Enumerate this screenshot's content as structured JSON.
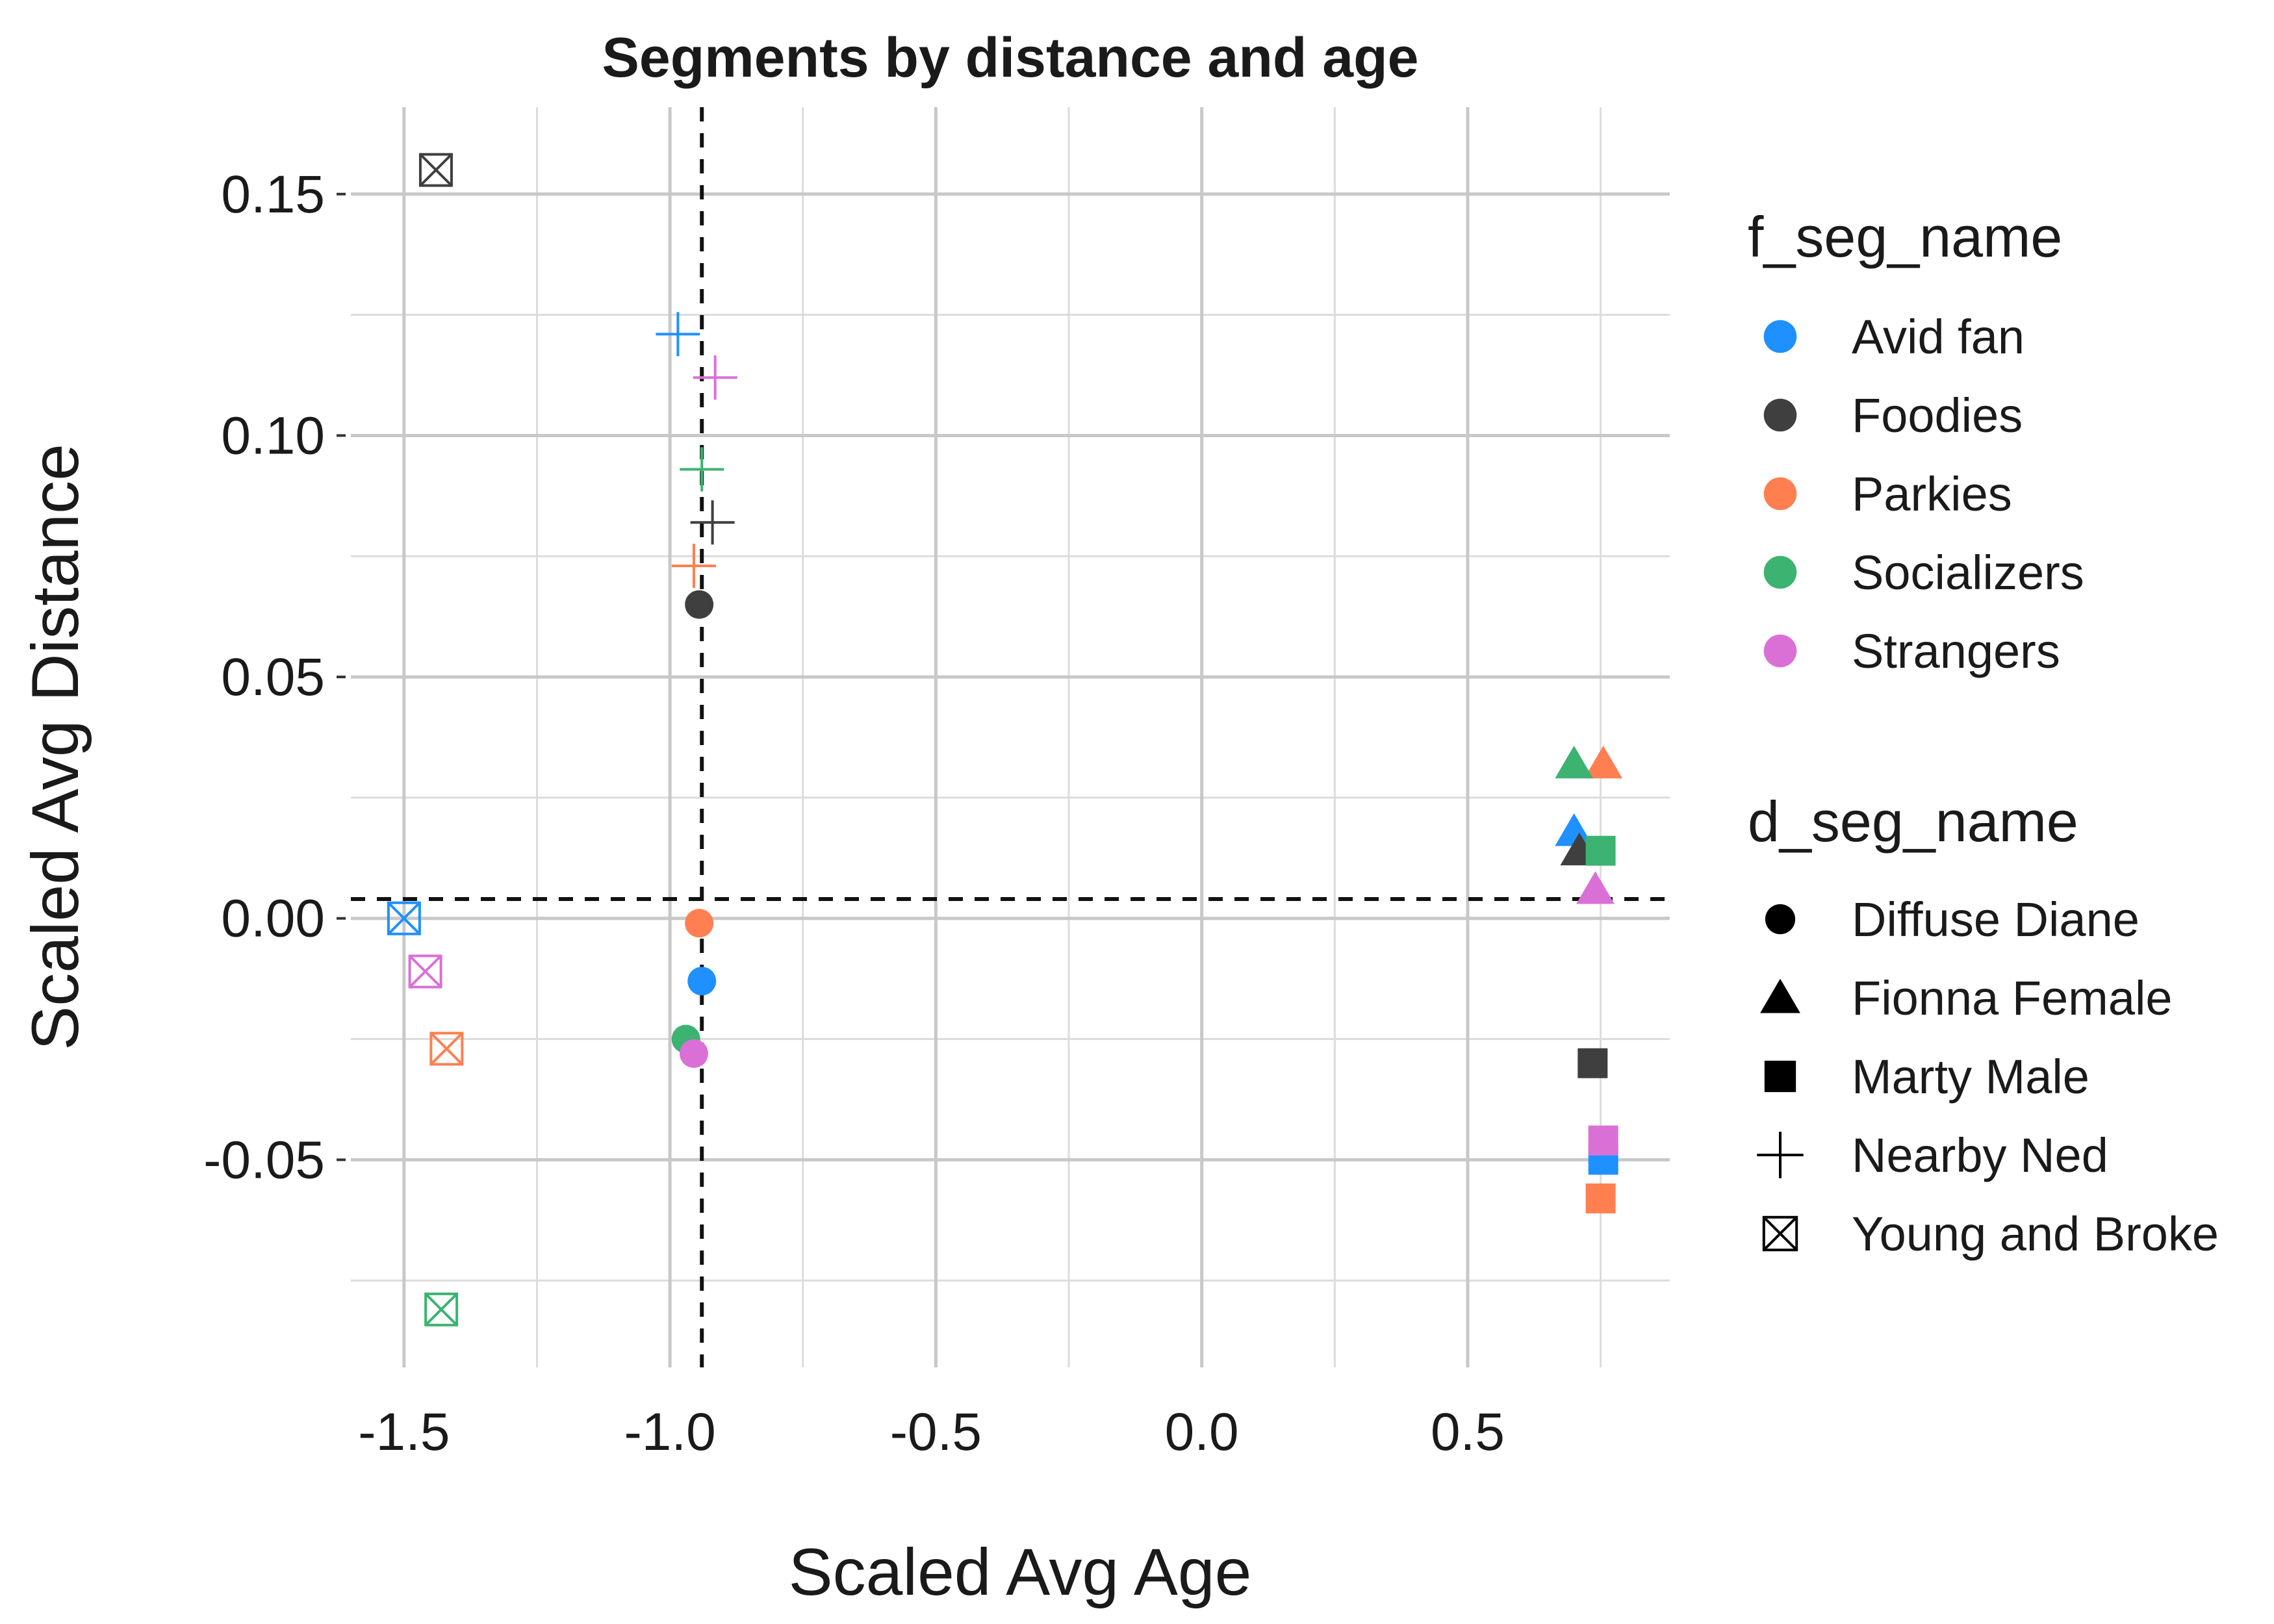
{
  "chart_data": {
    "type": "scatter",
    "title": "Segments by distance and age",
    "xlabel": "Scaled Avg Age",
    "ylabel": "Scaled Avg Distance",
    "xlim": [
      -1.6,
      0.88
    ],
    "ylim": [
      -0.093,
      0.168
    ],
    "x_ticks": [
      -1.5,
      -1.0,
      -0.5,
      0.0,
      0.5
    ],
    "x_tick_labels": [
      "-1.5",
      "-1.0",
      "-0.5",
      "0.0",
      "0.5"
    ],
    "y_ticks": [
      -0.05,
      0.0,
      0.05,
      0.1,
      0.15
    ],
    "y_tick_labels": [
      "-0.05",
      "0.00",
      "0.05",
      "0.10",
      "0.15"
    ],
    "x_minor_ticks": [
      -1.25,
      -0.75,
      -0.25,
      0.25,
      0.75
    ],
    "y_minor_ticks": [
      -0.075,
      -0.025,
      0.025,
      0.075,
      0.125
    ],
    "grid": true,
    "reference_lines": {
      "vline_x": -0.94,
      "hline_y": 0.004
    },
    "color_legend": {
      "title": "f_seg_name",
      "items": [
        {
          "name": "Avid fan",
          "color": "#1E90FF"
        },
        {
          "name": "Foodies",
          "color": "#3F3F3F"
        },
        {
          "name": "Parkies",
          "color": "#FF7F50"
        },
        {
          "name": "Socializers",
          "color": "#3CB371"
        },
        {
          "name": "Strangers",
          "color": "#DA70D6"
        }
      ]
    },
    "shape_legend": {
      "title": "d_seg_name",
      "items": [
        {
          "name": "Diffuse Diane",
          "shape": "circle"
        },
        {
          "name": "Fionna Female",
          "shape": "triangle"
        },
        {
          "name": "Marty Male",
          "shape": "square"
        },
        {
          "name": "Nearby Ned",
          "shape": "plus"
        },
        {
          "name": "Young and Broke",
          "shape": "boxx"
        }
      ]
    },
    "legend_position": "right",
    "points": [
      {
        "f": "Avid fan",
        "d": "Diffuse Diane",
        "x": -0.94,
        "y": -0.013
      },
      {
        "f": "Foodies",
        "d": "Diffuse Diane",
        "x": -0.945,
        "y": 0.065
      },
      {
        "f": "Parkies",
        "d": "Diffuse Diane",
        "x": -0.945,
        "y": -0.001
      },
      {
        "f": "Socializers",
        "d": "Diffuse Diane",
        "x": -0.97,
        "y": -0.025
      },
      {
        "f": "Strangers",
        "d": "Diffuse Diane",
        "x": -0.955,
        "y": -0.028
      },
      {
        "f": "Avid fan",
        "d": "Fionna Female",
        "x": 0.7,
        "y": 0.018
      },
      {
        "f": "Foodies",
        "d": "Fionna Female",
        "x": 0.71,
        "y": 0.014
      },
      {
        "f": "Parkies",
        "d": "Fionna Female",
        "x": 0.755,
        "y": 0.032
      },
      {
        "f": "Socializers",
        "d": "Fionna Female",
        "x": 0.7,
        "y": 0.032
      },
      {
        "f": "Strangers",
        "d": "Fionna Female",
        "x": 0.74,
        "y": 0.006
      },
      {
        "f": "Avid fan",
        "d": "Marty Male",
        "x": 0.755,
        "y": -0.05
      },
      {
        "f": "Foodies",
        "d": "Marty Male",
        "x": 0.735,
        "y": -0.03
      },
      {
        "f": "Parkies",
        "d": "Marty Male",
        "x": 0.75,
        "y": -0.058
      },
      {
        "f": "Socializers",
        "d": "Marty Male",
        "x": 0.75,
        "y": 0.014
      },
      {
        "f": "Strangers",
        "d": "Marty Male",
        "x": 0.755,
        "y": -0.046
      },
      {
        "f": "Avid fan",
        "d": "Nearby Ned",
        "x": -0.985,
        "y": 0.121
      },
      {
        "f": "Foodies",
        "d": "Nearby Ned",
        "x": -0.92,
        "y": 0.082
      },
      {
        "f": "Parkies",
        "d": "Nearby Ned",
        "x": -0.955,
        "y": 0.073
      },
      {
        "f": "Socializers",
        "d": "Nearby Ned",
        "x": -0.94,
        "y": 0.093
      },
      {
        "f": "Strangers",
        "d": "Nearby Ned",
        "x": -0.915,
        "y": 0.112
      },
      {
        "f": "Avid fan",
        "d": "Young and Broke",
        "x": -1.5,
        "y": 0.0
      },
      {
        "f": "Foodies",
        "d": "Young and Broke",
        "x": -1.44,
        "y": 0.155
      },
      {
        "f": "Parkies",
        "d": "Young and Broke",
        "x": -1.42,
        "y": -0.027
      },
      {
        "f": "Socializers",
        "d": "Young and Broke",
        "x": -1.43,
        "y": -0.081
      },
      {
        "f": "Strangers",
        "d": "Young and Broke",
        "x": -1.46,
        "y": -0.011
      }
    ]
  }
}
